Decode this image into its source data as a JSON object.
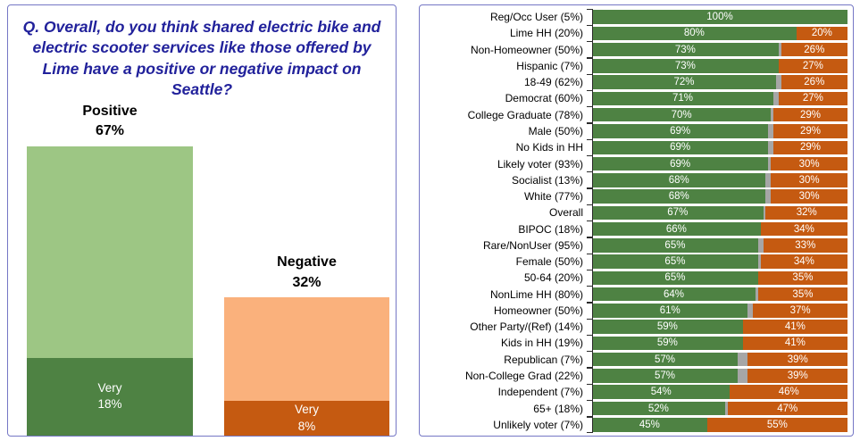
{
  "left_panel": {
    "question": "Q. Overall, do you think shared electric bike and electric scooter services like those offered by Lime have a positive or negative impact on Seattle?"
  },
  "colors": {
    "positive_light": "#9DC684",
    "positive_dark": "#4E8243",
    "negative_light": "#FAB17C",
    "negative_dark": "#C55A11",
    "neutral_gray": "#A6A6A6",
    "title_navy": "#21219B",
    "panel_border": "#7577C5"
  },
  "chart_data": [
    {
      "type": "bar",
      "title": "Q. Overall, do you think shared electric bike and electric scooter services like those offered by Lime have a positive or negative impact on Seattle?",
      "categories": [
        "Positive",
        "Negative"
      ],
      "very_word": "Very",
      "series": [
        {
          "name": "Total",
          "values": [
            67,
            32
          ],
          "labels": [
            "67%",
            "32%"
          ]
        },
        {
          "name": "Very",
          "values": [
            18,
            8
          ],
          "labels": [
            "18%",
            "8%"
          ]
        }
      ],
      "ylim": [
        0,
        100
      ],
      "bar_colors": [
        {
          "light": "#9DC684",
          "dark": "#4E8243"
        },
        {
          "light": "#FAB17C",
          "dark": "#C55A11"
        }
      ],
      "legend_position": "none",
      "grid": false
    },
    {
      "type": "bar",
      "orientation": "horizontal-stacked",
      "xlim": [
        0,
        100
      ],
      "value_suffix": "%",
      "grid": false,
      "legend_position": "none",
      "categories": [
        "Reg/Occ User (5%)",
        "Lime HH (20%)",
        "Non-Homeowner (50%)",
        "Hispanic (7%)",
        "18-49 (62%)",
        "Democrat (60%)",
        "College Graduate (78%)",
        "Male (50%)",
        "No Kids in HH",
        "Likely voter (93%)",
        "Socialist (13%)",
        "White (77%)",
        "Overall",
        "BIPOC (18%)",
        "Rare/NonUser (95%)",
        "Female (50%)",
        "50-64 (20%)",
        "NonLime HH (80%)",
        "Homeowner (50%)",
        "Other Party/(Ref) (14%)",
        "Kids in HH (19%)",
        "Republican (7%)",
        "Non-College Grad (22%)",
        "Independent (7%)",
        "65+ (18%)",
        "Unlikely voter (7%)"
      ],
      "series": [
        {
          "name": "Positive",
          "color": "#4E8243",
          "values": [
            100,
            80,
            73,
            73,
            72,
            71,
            70,
            69,
            69,
            69,
            68,
            68,
            67,
            66,
            65,
            65,
            65,
            64,
            61,
            59,
            59,
            57,
            57,
            54,
            52,
            45
          ]
        },
        {
          "name": "Neutral",
          "color": "#A6A6A6",
          "values": [
            0,
            0,
            1,
            0,
            2,
            2,
            1,
            2,
            2,
            1,
            2,
            2,
            1,
            0,
            2,
            1,
            0,
            1,
            2,
            0,
            0,
            4,
            4,
            0,
            1,
            0
          ]
        },
        {
          "name": "Negative",
          "color": "#C55A11",
          "values": [
            0,
            20,
            26,
            27,
            26,
            27,
            29,
            29,
            29,
            30,
            30,
            30,
            32,
            34,
            33,
            34,
            35,
            35,
            37,
            41,
            41,
            39,
            39,
            46,
            47,
            55
          ]
        }
      ]
    }
  ]
}
